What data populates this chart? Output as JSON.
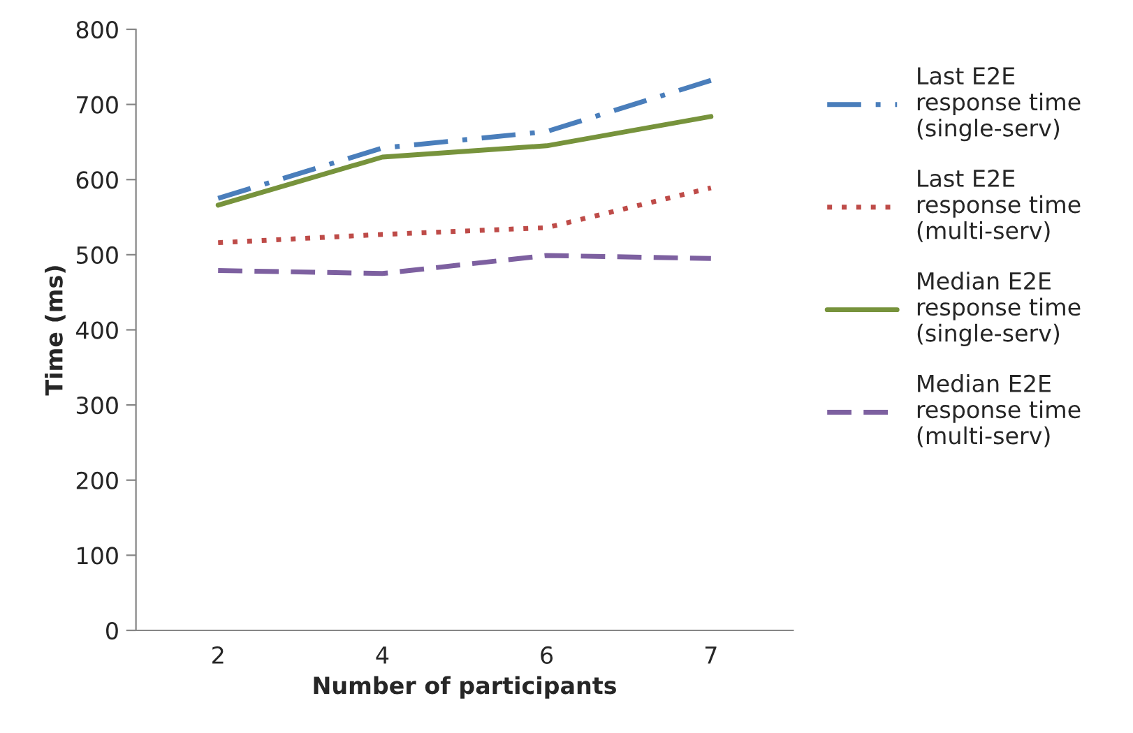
{
  "chart_data": {
    "type": "line",
    "xlabel": "Number of participants",
    "ylabel": "Time (ms)",
    "categories": [
      "2",
      "4",
      "6",
      "7"
    ],
    "series": [
      {
        "name": "Last E2E response time (single-serv)",
        "color": "#4a7ebb",
        "line_style": "dashdot",
        "values": [
          575,
          642,
          664,
          732
        ]
      },
      {
        "name": "Last E2E response time (multi-serv)",
        "color": "#be4b48",
        "line_style": "dotted",
        "values": [
          516,
          527,
          536,
          589
        ]
      },
      {
        "name": "Median E2E response time (single-serv)",
        "color": "#77933c",
        "line_style": "solid",
        "values": [
          566,
          630,
          645,
          684
        ]
      },
      {
        "name": "Median E2E response time (multi-serv)",
        "color": "#7d60a0",
        "line_style": "dashed",
        "values": [
          479,
          475,
          499,
          495
        ]
      }
    ],
    "ylim": [
      0,
      800
    ],
    "yticks": [
      0,
      100,
      200,
      300,
      400,
      500,
      600,
      700,
      800
    ],
    "grid": false,
    "legend": "right",
    "marker": "none"
  }
}
